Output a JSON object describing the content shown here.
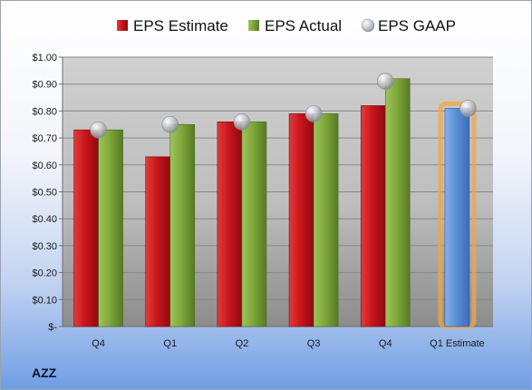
{
  "ticker": "AZZ",
  "chart_data": {
    "type": "bar",
    "categories": [
      "Q4",
      "Q1",
      "Q2",
      "Q3",
      "Q4",
      "Q1 Estimate"
    ],
    "series": [
      {
        "name": "EPS Estimate",
        "values": [
          0.73,
          0.63,
          0.76,
          0.79,
          0.82,
          null
        ],
        "color": "#c8161c"
      },
      {
        "name": "EPS Actual",
        "values": [
          0.73,
          0.75,
          0.76,
          0.79,
          0.92,
          null
        ],
        "color": "#7fa83a"
      },
      {
        "name": "EPS GAAP",
        "values": [
          0.73,
          0.75,
          0.76,
          0.79,
          0.91,
          0.81
        ],
        "color": "#b9bec6",
        "marker": "sphere"
      }
    ],
    "estimate_bar": {
      "category": "Q1 Estimate",
      "value": 0.81,
      "color": "#5b8fd6"
    },
    "ylim": [
      0,
      1.0
    ],
    "yticks": [
      "$-",
      "$0.10",
      "$0.20",
      "$0.30",
      "$0.40",
      "$0.50",
      "$0.60",
      "$0.70",
      "$0.80",
      "$0.90",
      "$1.00"
    ],
    "grid": true,
    "legend_position": "top"
  }
}
